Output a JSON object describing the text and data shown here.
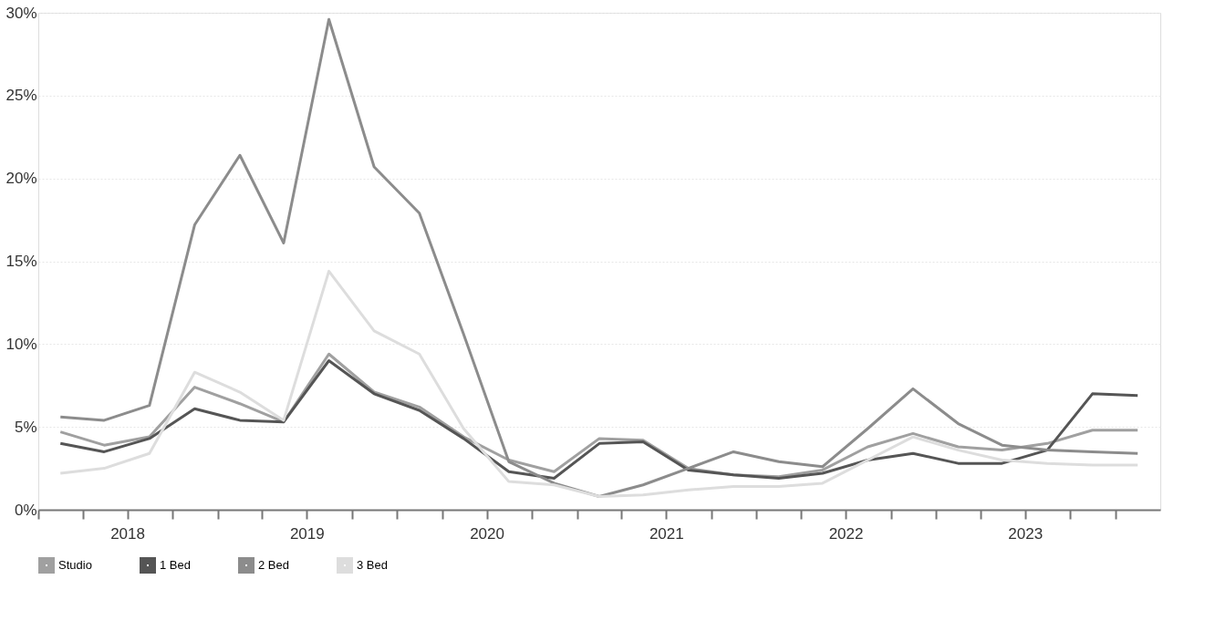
{
  "chart_data": {
    "type": "line",
    "x": [
      "2018-02-15",
      "2018-05-15",
      "2018-08-15",
      "2018-11-15",
      "2019-02-15",
      "2019-05-15",
      "2019-08-15",
      "2019-11-15",
      "2020-02-15",
      "2020-05-15",
      "2020-08-15",
      "2020-11-15",
      "2021-02-15",
      "2021-05-15",
      "2021-08-15",
      "2021-11-15",
      "2022-02-15",
      "2022-05-15",
      "2022-08-15",
      "2022-11-15",
      "2023-02-15",
      "2023-05-15",
      "2023-08-15",
      "2023-11-15",
      "2024-02-15"
    ],
    "series": [
      {
        "name": "Studio",
        "color": "#a0a0a0",
        "values": [
          4.7,
          3.9,
          4.4,
          7.4,
          6.4,
          5.3,
          9.4,
          7.1,
          6.2,
          4.4,
          3.0,
          2.3,
          4.3,
          4.2,
          2.5,
          2.1,
          2.0,
          2.4,
          3.8,
          4.6,
          3.8,
          3.6,
          4.0,
          4.8,
          4.8
        ]
      },
      {
        "name": "1 Bed",
        "color": "#555555",
        "values": [
          4.0,
          3.5,
          4.3,
          6.1,
          5.4,
          5.3,
          9.0,
          7.0,
          6.0,
          4.3,
          2.3,
          1.9,
          4.0,
          4.1,
          2.4,
          2.1,
          1.9,
          2.2,
          3.0,
          3.4,
          2.8,
          2.8,
          3.6,
          7.0,
          6.9
        ]
      },
      {
        "name": "2 Bed",
        "color": "#8c8c8c",
        "values": [
          5.6,
          5.4,
          6.3,
          17.2,
          21.4,
          16.1,
          29.6,
          20.7,
          17.9,
          10.6,
          2.9,
          1.6,
          0.8,
          1.5,
          2.5,
          3.5,
          2.9,
          2.6,
          4.9,
          7.3,
          5.2,
          3.9,
          3.6,
          3.5,
          3.4
        ]
      },
      {
        "name": "3 Bed",
        "color": "#dddddd",
        "values": [
          2.2,
          2.5,
          3.4,
          8.3,
          7.1,
          5.4,
          14.4,
          10.8,
          9.4,
          4.9,
          1.7,
          1.5,
          0.8,
          0.9,
          1.2,
          1.4,
          1.4,
          1.6,
          3.0,
          4.4,
          3.6,
          3.0,
          2.8,
          2.7,
          2.7
        ]
      }
    ],
    "xlim": [
      "2018-01-01",
      "2024-04-01"
    ],
    "xticks": [
      {
        "value": "2018-01-01",
        "label": null
      },
      {
        "value": "2018-04-01",
        "label": null
      },
      {
        "value": "2018-07-01",
        "label": "2018"
      },
      {
        "value": "2018-10-01",
        "label": null
      },
      {
        "value": "2019-01-01",
        "label": null
      },
      {
        "value": "2019-04-01",
        "label": null
      },
      {
        "value": "2019-07-01",
        "label": "2019"
      },
      {
        "value": "2019-10-01",
        "label": null
      },
      {
        "value": "2020-01-01",
        "label": null
      },
      {
        "value": "2020-04-01",
        "label": null
      },
      {
        "value": "2020-07-01",
        "label": "2020"
      },
      {
        "value": "2020-10-01",
        "label": null
      },
      {
        "value": "2021-01-01",
        "label": null
      },
      {
        "value": "2021-04-01",
        "label": null
      },
      {
        "value": "2021-07-01",
        "label": "2021"
      },
      {
        "value": "2021-10-01",
        "label": null
      },
      {
        "value": "2022-01-01",
        "label": null
      },
      {
        "value": "2022-04-01",
        "label": null
      },
      {
        "value": "2022-07-01",
        "label": "2022"
      },
      {
        "value": "2022-10-01",
        "label": null
      },
      {
        "value": "2023-01-01",
        "label": null
      },
      {
        "value": "2023-04-01",
        "label": null
      },
      {
        "value": "2023-07-01",
        "label": "2023"
      },
      {
        "value": "2023-10-01",
        "label": null
      },
      {
        "value": "2024-01-01",
        "label": null
      }
    ],
    "ylim": [
      0,
      30
    ],
    "yticks": [
      {
        "value": 0,
        "label": "0%"
      },
      {
        "value": 5,
        "label": "5%"
      },
      {
        "value": 10,
        "label": "10%"
      },
      {
        "value": 15,
        "label": "15%"
      },
      {
        "value": 20,
        "label": "20%"
      },
      {
        "value": 25,
        "label": "25%"
      },
      {
        "value": 30,
        "label": "30%"
      }
    ],
    "grid": "y",
    "legend": "bottom",
    "marker": "none",
    "line_style": "solid"
  }
}
